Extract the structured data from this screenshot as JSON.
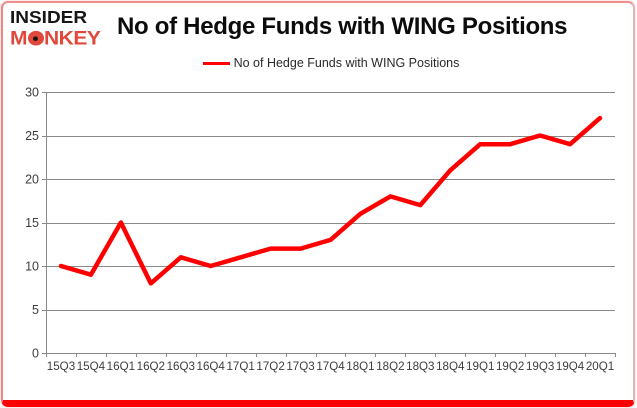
{
  "logo": {
    "line1": "INSIDER",
    "line2_pre": "M",
    "line2_post": "NKEY"
  },
  "title": "No of Hedge Funds with WING Positions",
  "legend": {
    "label": "No of Hedge Funds with WING Positions"
  },
  "colors": {
    "series": "#ff0000",
    "grid": "#8a8a8a",
    "axis_text": "#3d3d3d",
    "brand": "#e0483a",
    "border_bottom": "#fe0202"
  },
  "chart_data": {
    "type": "line",
    "title": "No of Hedge Funds with WING Positions",
    "series_name": "No of Hedge Funds with WING Positions",
    "categories": [
      "15Q3",
      "15Q4",
      "16Q1",
      "16Q2",
      "16Q3",
      "16Q4",
      "17Q1",
      "17Q2",
      "17Q3",
      "17Q4",
      "18Q1",
      "18Q2",
      "18Q3",
      "18Q4",
      "19Q1",
      "19Q2",
      "19Q3",
      "19Q4",
      "20Q1"
    ],
    "values": [
      10,
      9,
      15,
      8,
      11,
      10,
      11,
      12,
      12,
      13,
      16,
      18,
      17,
      21,
      24,
      24,
      25,
      24,
      27
    ],
    "xlabel": "",
    "ylabel": "",
    "ylim": [
      0,
      30
    ],
    "yticks": [
      0,
      5,
      10,
      15,
      20,
      25,
      30
    ],
    "grid": "horizontal",
    "legend_position": "top-center"
  }
}
